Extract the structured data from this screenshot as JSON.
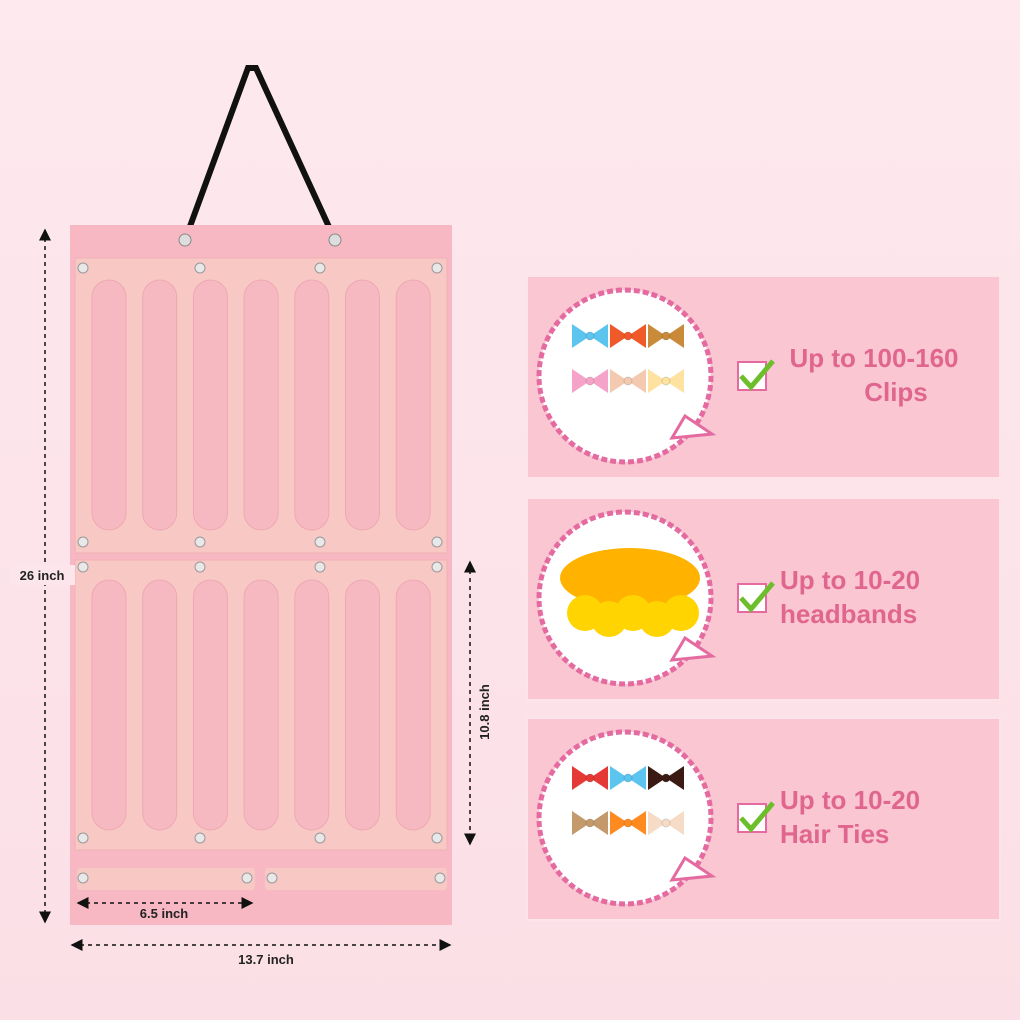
{
  "dimensions": {
    "height": "26 inch",
    "panel_height": "10.8 inch",
    "strip_width": "6.5 inch",
    "width": "13.7 inch"
  },
  "features": [
    {
      "lines": [
        "Up to 100-160",
        "Clips"
      ]
    },
    {
      "lines": [
        "Up to 10-20",
        "headbands"
      ]
    },
    {
      "lines": [
        "Up to 10-20",
        "Hair Ties"
      ]
    }
  ]
}
